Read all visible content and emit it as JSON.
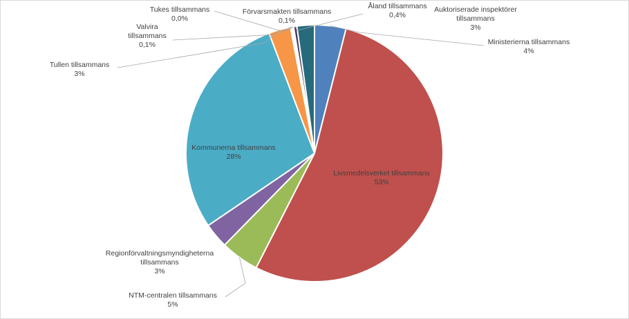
{
  "chart_data": {
    "type": "pie",
    "slices": [
      {
        "name": "Ministerierna tillsammans",
        "value": 4,
        "value_label": "4%",
        "color": "#4f81bd"
      },
      {
        "name": "Livsmedelsverket tillsammans",
        "value": 53,
        "value_label": "53%",
        "color": "#c0504d"
      },
      {
        "name": "NTM-centralen tillsammans",
        "value": 5,
        "value_label": "5%",
        "color": "#9bbb59"
      },
      {
        "name": "Regionförvaltningsmyndigheterna tillsammans",
        "value": 3,
        "value_label": "3%",
        "color": "#8064a2"
      },
      {
        "name": "Kommunerna tillsammans",
        "value": 28,
        "value_label": "28%",
        "color": "#4bacc6"
      },
      {
        "name": "Tullen tillsammans",
        "value": 3,
        "value_label": "3%",
        "color": "#f79646"
      },
      {
        "name": "Valvira tillsammans",
        "value": 0.1,
        "value_label": "0,1%",
        "color": "#2c4d75"
      },
      {
        "name": "Tukes tillsammans",
        "value": 0.0,
        "value_label": "0,0%",
        "color": "#772c2a"
      },
      {
        "name": "Förvarsmakten tillsammans",
        "value": 0.1,
        "value_label": "0,1%",
        "color": "#5f7530"
      },
      {
        "name": "Åland tillsammans",
        "value": 0.4,
        "value_label": "0,4%",
        "color": "#4d3b62"
      },
      {
        "name": "Auktoriserade inspektörer tillsammans",
        "value": 3,
        "value_label": "3%",
        "color": "#276a7c"
      }
    ]
  }
}
